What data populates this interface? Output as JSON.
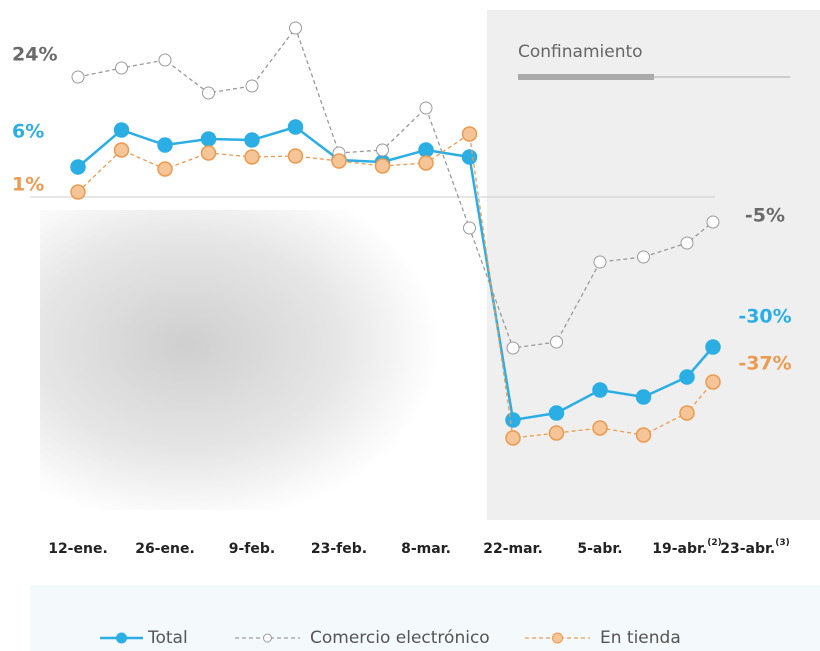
{
  "chart_data": {
    "type": "line",
    "annotation": "Confinamiento",
    "categories": [
      "12-ene.",
      null,
      "26-ene.",
      null,
      "9-feb.",
      null,
      "23-feb.",
      null,
      "8-mar.",
      null,
      "22-mar.",
      null,
      "5-abr.",
      null,
      "19-abr.",
      "23-abr."
    ],
    "category_superscripts": [
      null,
      null,
      null,
      null,
      null,
      null,
      null,
      null,
      null,
      null,
      null,
      null,
      null,
      null,
      "(2)",
      "(3)"
    ],
    "ylim": [
      -60,
      40
    ],
    "series": [
      {
        "name": "Total",
        "color": "#2aaee4",
        "dashed": false,
        "hollow": false,
        "values": [
          6,
          13.4,
          10.4,
          11.6,
          11.4,
          14,
          7.4,
          7,
          9.4,
          8,
          -44.6,
          -43.2,
          -38.6,
          -40,
          -36,
          -30
        ],
        "value_labels": [
          "6%",
          null,
          null,
          null,
          null,
          null,
          null,
          null,
          null,
          null,
          null,
          null,
          null,
          null,
          null,
          "-30%"
        ]
      },
      {
        "name": "Comercio electrónico",
        "color": "#9a9a9a",
        "dashed": true,
        "hollow": true,
        "values": [
          24,
          25.8,
          27.4,
          20.8,
          22.2,
          33.8,
          8.8,
          9.4,
          17.8,
          -6.2,
          -30.2,
          -29,
          -13,
          -12,
          -9.2,
          -5
        ],
        "value_labels": [
          "24%",
          null,
          null,
          null,
          null,
          null,
          null,
          null,
          null,
          null,
          null,
          null,
          null,
          null,
          null,
          "-5%"
        ]
      },
      {
        "name": "En tienda",
        "color": "#eb9a4f",
        "dashed": true,
        "hollow": false,
        "values": [
          1,
          9.4,
          5.6,
          8.8,
          8,
          8.2,
          7.2,
          6.2,
          6.8,
          12.6,
          -48.2,
          -47.2,
          -46.2,
          -47.6,
          -43.2,
          -37
        ],
        "value_labels": [
          "1%",
          null,
          null,
          null,
          null,
          null,
          null,
          null,
          null,
          null,
          null,
          null,
          null,
          null,
          null,
          "-37%"
        ]
      }
    ]
  }
}
